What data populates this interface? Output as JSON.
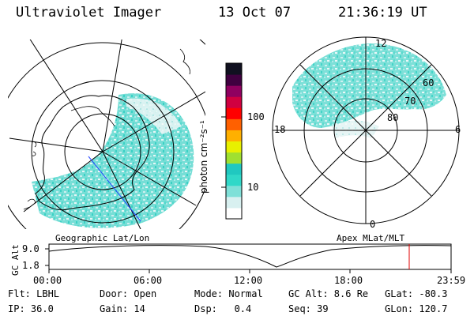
{
  "header": {
    "title": "Ultraviolet Imager",
    "date": "13 Oct 07",
    "time": "21:36:19 UT"
  },
  "maps": {
    "left_label": "Geographic Lat/Lon",
    "right_label": "Apex MLat/MLT",
    "right_mlt_labels": {
      "top": "12",
      "left": "18",
      "right": "6",
      "bottom": "0"
    },
    "right_lat_labels": [
      "60",
      "70",
      "80"
    ]
  },
  "colorbar": {
    "unit_label": "photon cm⁻²s⁻¹",
    "ticks": [
      "100",
      "10"
    ],
    "colors": [
      "#ffffff",
      "#d8f0f0",
      "#7fe0d8",
      "#30d8c8",
      "#20c8c0",
      "#a0e030",
      "#e8f000",
      "#ffb000",
      "#ff6000",
      "#ff0000",
      "#d00040",
      "#900060",
      "#400040",
      "#101020"
    ]
  },
  "altitude_plot": {
    "ylabel": "GC Alt",
    "y_ticks": [
      "9.0",
      "1.8"
    ],
    "x_ticks": [
      "00:00",
      "06:00",
      "12:00",
      "18:00",
      "23:59"
    ],
    "marker_color": "#e00000"
  },
  "footer": {
    "row1": [
      "Flt: LBHL",
      "Door: Open",
      "Mode: Normal",
      "GC Alt: 8.6 Re",
      "GLat: -80.3"
    ],
    "row2": [
      "IP: 36.0",
      "Gain: 14",
      "Dsp:   0.4",
      "Seq: 39",
      "GLon: 120.7"
    ]
  }
}
